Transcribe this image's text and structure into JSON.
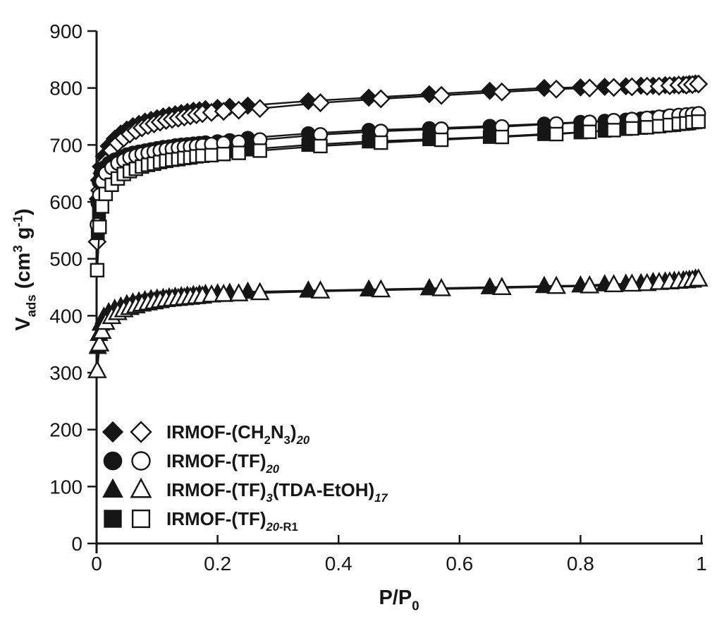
{
  "figure": {
    "background": "#ffffff",
    "ink_color": "#161616"
  },
  "chart_data": {
    "type": "line",
    "title": "",
    "xlabel": "P/P0",
    "ylabel": "Vads (cm3 g-1)",
    "xlabel_parts": [
      {
        "t": "P/P"
      },
      {
        "t": "0",
        "sub": true
      }
    ],
    "ylabel_parts": [
      {
        "t": "V"
      },
      {
        "t": "ads",
        "sub": true
      },
      {
        "t": " (cm"
      },
      {
        "t": "3",
        "sup": true
      },
      {
        "t": " g"
      },
      {
        "t": "-1",
        "sup": true
      },
      {
        "t": ")"
      }
    ],
    "xlim": [
      0,
      1
    ],
    "ylim": [
      0,
      900
    ],
    "xticks": [
      0,
      0.2,
      0.4,
      0.6,
      0.8,
      1
    ],
    "xtick_labels": [
      "0",
      "0.2",
      "0.4",
      "0.6",
      "0.8",
      "1"
    ],
    "yticks": [
      0,
      100,
      200,
      300,
      400,
      500,
      600,
      700,
      800,
      900
    ],
    "ytick_labels": [
      "0",
      "100",
      "200",
      "300",
      "400",
      "500",
      "600",
      "700",
      "800",
      "900"
    ],
    "grid": false,
    "legend_position": "inside-lower-left",
    "series": [
      {
        "name": "IRMOF-(CH2N3)20 adsorption",
        "marker": "diamond",
        "fill": "filled",
        "x": [
          0.002,
          0.004,
          0.007,
          0.012,
          0.02,
          0.03,
          0.04,
          0.05,
          0.06,
          0.07,
          0.08,
          0.09,
          0.1,
          0.11,
          0.12,
          0.13,
          0.14,
          0.15,
          0.16,
          0.17,
          0.18,
          0.2,
          0.22,
          0.25,
          0.35,
          0.45,
          0.55,
          0.65,
          0.74,
          0.8,
          0.84,
          0.875,
          0.9,
          0.92,
          0.94,
          0.955,
          0.97,
          0.98,
          0.99
        ],
        "y": [
          605,
          638,
          662,
          680,
          698,
          711,
          720,
          727,
          733,
          737,
          741,
          744,
          747,
          750,
          752,
          754,
          756,
          758,
          760,
          761,
          763,
          765,
          767,
          769,
          777,
          783,
          789,
          795,
          800,
          801,
          802,
          803,
          804,
          804,
          805,
          805,
          806,
          807,
          808
        ]
      },
      {
        "name": "IRMOF-(CH2N3)20 desorption",
        "marker": "diamond",
        "fill": "open",
        "x": [
          0.001,
          0.005,
          0.009,
          0.015,
          0.025,
          0.035,
          0.045,
          0.055,
          0.065,
          0.075,
          0.085,
          0.095,
          0.105,
          0.115,
          0.125,
          0.135,
          0.145,
          0.155,
          0.165,
          0.175,
          0.19,
          0.21,
          0.235,
          0.27,
          0.37,
          0.47,
          0.57,
          0.67,
          0.76,
          0.815,
          0.855,
          0.885,
          0.91,
          0.93,
          0.9475,
          0.9625,
          0.975,
          0.985,
          0.995
        ],
        "y": [
          530,
          620,
          650,
          670,
          690,
          703,
          712,
          719,
          725,
          730,
          734,
          737,
          740,
          743,
          745,
          747,
          749,
          751,
          753,
          755,
          757,
          759,
          761,
          764,
          774,
          781,
          787,
          793,
          798,
          800,
          801,
          802,
          803,
          803,
          804,
          805,
          805,
          806,
          807
        ]
      },
      {
        "name": "IRMOF-(TF)20 adsorption",
        "marker": "circle",
        "fill": "filled",
        "x": [
          0.002,
          0.004,
          0.007,
          0.012,
          0.02,
          0.03,
          0.04,
          0.05,
          0.06,
          0.07,
          0.08,
          0.09,
          0.1,
          0.11,
          0.12,
          0.13,
          0.14,
          0.15,
          0.16,
          0.17,
          0.18,
          0.2,
          0.22,
          0.25,
          0.35,
          0.45,
          0.55,
          0.65,
          0.74,
          0.8,
          0.84,
          0.875,
          0.9,
          0.92,
          0.94,
          0.955,
          0.97,
          0.98,
          0.99
        ],
        "y": [
          598,
          635,
          650,
          660,
          668,
          674,
          679,
          683,
          686,
          688,
          690,
          692,
          694,
          696,
          697,
          699,
          700,
          701,
          702,
          703,
          704,
          706,
          708,
          712,
          720,
          726,
          729,
          733,
          737,
          740,
          742,
          744,
          746,
          748,
          749,
          750,
          751,
          752,
          753
        ]
      },
      {
        "name": "IRMOF-(TF)20-R1 adsorption",
        "marker": "square",
        "fill": "filled",
        "x": [
          0.002,
          0.004,
          0.007,
          0.012,
          0.02,
          0.03,
          0.04,
          0.05,
          0.06,
          0.07,
          0.08,
          0.09,
          0.1,
          0.11,
          0.12,
          0.13,
          0.14,
          0.15,
          0.16,
          0.17,
          0.18,
          0.2,
          0.22,
          0.25,
          0.35,
          0.45,
          0.55,
          0.65,
          0.74,
          0.8,
          0.84,
          0.875,
          0.9,
          0.92,
          0.94,
          0.955,
          0.97,
          0.98,
          0.99
        ],
        "y": [
          545,
          578,
          606,
          624,
          638,
          648,
          654,
          659,
          663,
          666,
          669,
          671,
          673,
          675,
          677,
          678,
          680,
          681,
          682,
          683,
          685,
          687,
          689,
          692,
          700,
          706,
          710,
          714,
          719,
          722,
          725,
          728,
          730,
          732,
          734,
          735,
          737,
          738,
          740
        ]
      },
      {
        "name": "IRMOF-(TF)20 desorption",
        "marker": "circle",
        "fill": "open",
        "x": [
          0.001,
          0.005,
          0.009,
          0.015,
          0.025,
          0.035,
          0.045,
          0.055,
          0.065,
          0.075,
          0.085,
          0.095,
          0.105,
          0.115,
          0.125,
          0.135,
          0.145,
          0.155,
          0.165,
          0.175,
          0.19,
          0.21,
          0.235,
          0.27,
          0.37,
          0.47,
          0.57,
          0.67,
          0.76,
          0.815,
          0.855,
          0.885,
          0.91,
          0.93,
          0.9475,
          0.9625,
          0.975,
          0.985,
          0.995
        ],
        "y": [
          560,
          612,
          636,
          650,
          660,
          668,
          673,
          678,
          681,
          684,
          686,
          688,
          690,
          692,
          693,
          695,
          696,
          697,
          698,
          699,
          701,
          703,
          705,
          709,
          718,
          724,
          728,
          732,
          737,
          740,
          743,
          745,
          747,
          749,
          751,
          752,
          753,
          754,
          755
        ]
      },
      {
        "name": "IRMOF-(TF)20-R1 desorption",
        "marker": "square",
        "fill": "open",
        "x": [
          0.001,
          0.005,
          0.009,
          0.015,
          0.025,
          0.035,
          0.045,
          0.055,
          0.065,
          0.075,
          0.085,
          0.095,
          0.105,
          0.115,
          0.125,
          0.135,
          0.145,
          0.155,
          0.165,
          0.175,
          0.19,
          0.21,
          0.235,
          0.27,
          0.37,
          0.47,
          0.57,
          0.67,
          0.76,
          0.815,
          0.855,
          0.885,
          0.91,
          0.93,
          0.9475,
          0.9625,
          0.975,
          0.985,
          0.995
        ],
        "y": [
          480,
          556,
          592,
          614,
          630,
          641,
          649,
          654,
          658,
          662,
          665,
          667,
          670,
          672,
          674,
          675,
          677,
          678,
          680,
          681,
          682,
          684,
          686,
          690,
          698,
          704,
          709,
          714,
          719,
          723,
          726,
          729,
          731,
          733,
          735,
          737,
          738,
          740,
          741
        ]
      },
      {
        "name": "IRMOF-(TF)3(TDA-EtOH)17 adsorption",
        "marker": "triangle",
        "fill": "filled",
        "x": [
          0.002,
          0.004,
          0.007,
          0.012,
          0.02,
          0.03,
          0.04,
          0.05,
          0.06,
          0.07,
          0.08,
          0.09,
          0.1,
          0.11,
          0.12,
          0.13,
          0.14,
          0.15,
          0.16,
          0.17,
          0.18,
          0.2,
          0.22,
          0.25,
          0.35,
          0.45,
          0.55,
          0.65,
          0.74,
          0.8,
          0.84,
          0.875,
          0.9,
          0.92,
          0.94,
          0.955,
          0.97,
          0.98,
          0.99
        ],
        "y": [
          345,
          368,
          386,
          398,
          406,
          412,
          416,
          420,
          423,
          425,
          427,
          429,
          430,
          431,
          432,
          433,
          434,
          435,
          436,
          437,
          438,
          439,
          440,
          442,
          444,
          446,
          448,
          450,
          452,
          453,
          455,
          456,
          457,
          459,
          460,
          461,
          462,
          463,
          465
        ]
      },
      {
        "name": "IRMOF-(TF)3(TDA-EtOH)17 desorption",
        "marker": "triangle",
        "fill": "open",
        "x": [
          0.001,
          0.005,
          0.009,
          0.015,
          0.025,
          0.035,
          0.045,
          0.055,
          0.065,
          0.075,
          0.085,
          0.095,
          0.105,
          0.115,
          0.125,
          0.135,
          0.145,
          0.155,
          0.165,
          0.175,
          0.19,
          0.21,
          0.235,
          0.27,
          0.37,
          0.47,
          0.57,
          0.67,
          0.76,
          0.815,
          0.855,
          0.885,
          0.91,
          0.93,
          0.9475,
          0.9625,
          0.975,
          0.985,
          0.995
        ],
        "y": [
          303,
          350,
          372,
          388,
          398,
          405,
          410,
          414,
          417,
          420,
          422,
          424,
          426,
          428,
          429,
          430,
          431,
          432,
          433,
          434,
          436,
          437,
          438,
          440,
          443,
          445,
          447,
          449,
          451,
          452,
          454,
          455,
          456,
          458,
          459,
          460,
          461,
          462,
          464
        ]
      }
    ],
    "legend": [
      {
        "marker": "diamond",
        "label": "IRMOF-(CH2N3)20",
        "parts": [
          {
            "t": "IRMOF-(CH"
          },
          {
            "t": "2",
            "sub": true
          },
          {
            "t": "N"
          },
          {
            "t": "3",
            "sub": true
          },
          {
            "t": ")"
          },
          {
            "t": "20",
            "sub": true,
            "italic": true
          }
        ]
      },
      {
        "marker": "circle",
        "label": "IRMOF-(TF)20",
        "parts": [
          {
            "t": "IRMOF-(TF)"
          },
          {
            "t": "20",
            "sub": true,
            "italic": true
          }
        ]
      },
      {
        "marker": "triangle",
        "label": "IRMOF-(TF)3(TDA-EtOH)17",
        "parts": [
          {
            "t": "IRMOF-(TF)"
          },
          {
            "t": "3",
            "sub": true,
            "italic": true
          },
          {
            "t": "(TDA-EtOH)"
          },
          {
            "t": "17",
            "sub": true,
            "italic": true
          }
        ]
      },
      {
        "marker": "square",
        "label": "IRMOF-(TF)20-R1",
        "parts": [
          {
            "t": "IRMOF-(TF)"
          },
          {
            "t": "20",
            "sub": true,
            "italic": true
          },
          {
            "t": "-R1",
            "sub": true
          }
        ]
      }
    ]
  }
}
